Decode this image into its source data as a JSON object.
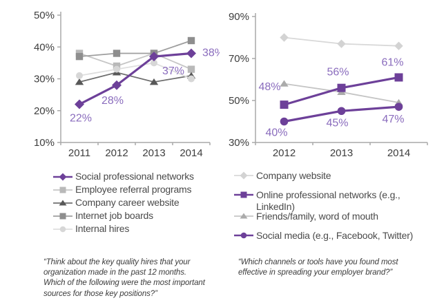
{
  "accent_color": "#6d4099",
  "chart_data": [
    {
      "type": "line",
      "title": "",
      "xlabel": "",
      "ylabel": "",
      "grid": false,
      "legend_position": "bottom",
      "categories": [
        "2011",
        "2012",
        "2013",
        "2014"
      ],
      "ylim": [
        10,
        50
      ],
      "yticks": [
        {
          "value": 10,
          "label": "10%"
        },
        {
          "value": 20,
          "label": "20%"
        },
        {
          "value": 30,
          "label": "30%"
        },
        {
          "value": 40,
          "label": "40%"
        },
        {
          "value": 50,
          "label": "50%"
        }
      ],
      "label_color": "#8a6cbd",
      "series": [
        {
          "name": "Social professional networks",
          "shape": "diamond",
          "color": "#6d4099",
          "line_color": "#6d4099",
          "emphasis": true,
          "values": [
            22,
            28,
            37,
            38
          ],
          "point_labels": [
            "22%",
            "28%",
            "37%",
            "38%"
          ]
        },
        {
          "name": "Employee referral programs",
          "shape": "square",
          "color": "#b9b9b9",
          "line_color": "#c6c6c6",
          "emphasis": false,
          "values": [
            38,
            34,
            38,
            33
          ]
        },
        {
          "name": "Company career website",
          "shape": "triangle",
          "color": "#585858",
          "line_color": "#6e6e6e",
          "emphasis": false,
          "values": [
            29,
            32,
            29,
            31
          ]
        },
        {
          "name": "Internet job boards",
          "shape": "square",
          "color": "#8e8e8e",
          "line_color": "#9e9e9e",
          "emphasis": false,
          "values": [
            37,
            38,
            38,
            42
          ]
        },
        {
          "name": "Internal hires",
          "shape": "circle",
          "color": "#d7d7d7",
          "line_color": "#dedede",
          "emphasis": false,
          "values": [
            31,
            33,
            35,
            30
          ]
        }
      ]
    },
    {
      "type": "line",
      "title": "",
      "xlabel": "",
      "ylabel": "",
      "grid": false,
      "legend_position": "bottom",
      "categories": [
        "2012",
        "2013",
        "2014"
      ],
      "ylim": [
        30,
        90
      ],
      "yticks": [
        {
          "value": 30,
          "label": "30%"
        },
        {
          "value": 50,
          "label": "50%"
        },
        {
          "value": 70,
          "label": "70%"
        },
        {
          "value": 90,
          "label": "90%"
        }
      ],
      "label_color": "#8a6cbd",
      "series": [
        {
          "name": "Company website",
          "shape": "diamond",
          "color": "#d3d3d3",
          "line_color": "#d8d8d8",
          "emphasis": false,
          "values": [
            80,
            77,
            76
          ]
        },
        {
          "name": "Online professional networks (e.g., LinkedIn)",
          "shape": "square",
          "color": "#6d4099",
          "line_color": "#6d4099",
          "emphasis": true,
          "values": [
            48,
            56,
            61
          ],
          "point_labels": [
            "48%",
            "56%",
            "61%"
          ]
        },
        {
          "name": "Friends/family, word of mouth",
          "shape": "triangle",
          "color": "#ababab",
          "line_color": "#c4c4c4",
          "emphasis": false,
          "values": [
            58,
            54,
            49
          ]
        },
        {
          "name": "Social media (e.g., Facebook, Twitter)",
          "shape": "circle",
          "color": "#6d4099",
          "line_color": "#6d4099",
          "emphasis": true,
          "values": [
            40,
            45,
            47
          ],
          "point_labels": [
            "40%",
            "45%",
            "47%"
          ]
        }
      ]
    }
  ],
  "quotes": {
    "left": "“Think about the key quality hires that your organization made in the past 12 months. Which of the following were the most important sources for those key positions?”",
    "right": "“Which channels or tools have you found most effective in spreading your employer brand?”"
  }
}
